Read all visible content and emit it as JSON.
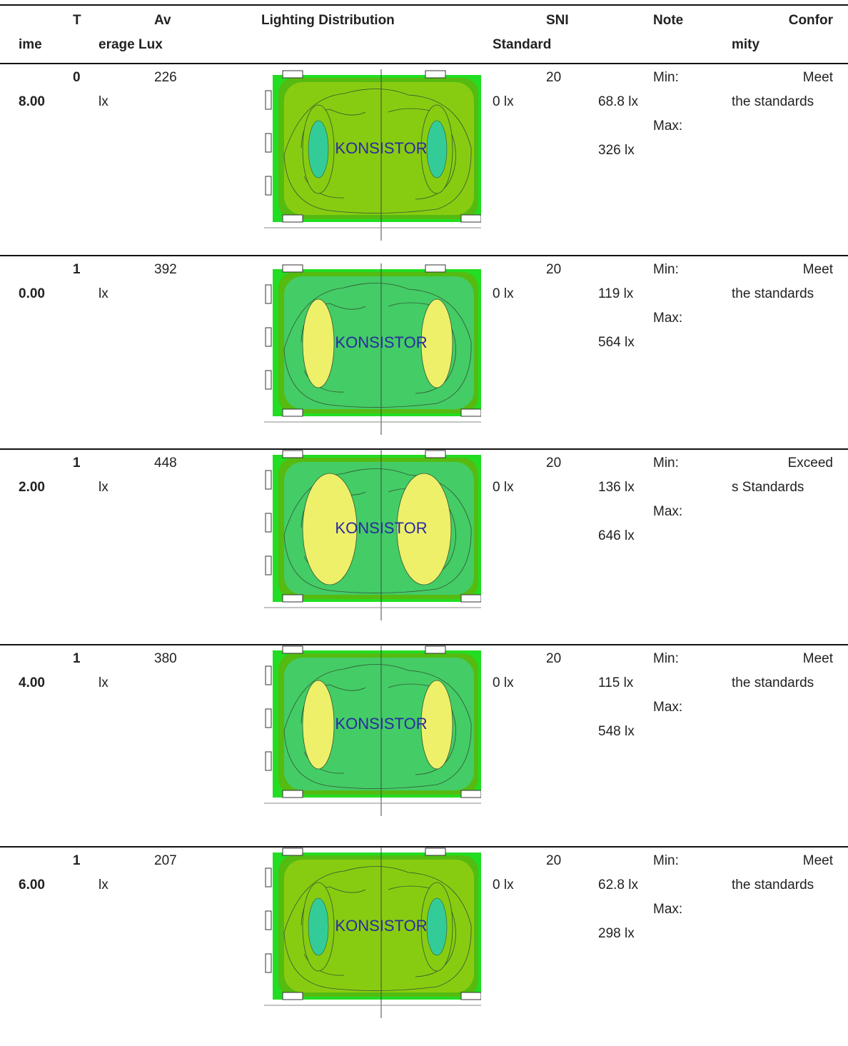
{
  "header": {
    "time_l1": "T",
    "time_l2": "ime",
    "avg_l1": "Av",
    "avg_l2": "erage Lux",
    "dist": "Lighting Distribution",
    "sni_l1": "SNI",
    "sni_l2": "Standard",
    "note": "Note",
    "conf_l1": "Confor",
    "conf_l2": "mity"
  },
  "diagram_label": "KONSISTOR",
  "rows": [
    {
      "t1": "0",
      "t2": "8.00",
      "avg": "226",
      "unit": "lx",
      "sni1": "20",
      "sni2": "0 lx",
      "min_label": "Min:",
      "min": "68.8 lx",
      "max_label": "Max:",
      "max": "326 lx",
      "c1": "Meet",
      "c2": "the standards",
      "scheme": "low"
    },
    {
      "t1": "1",
      "t2": "0.00",
      "avg": "392",
      "unit": "lx",
      "sni1": "20",
      "sni2": "0 lx",
      "min_label": "Min:",
      "min": "119 lx",
      "max_label": "Max:",
      "max": "564 lx",
      "c1": "Meet",
      "c2": "the standards",
      "scheme": "mid"
    },
    {
      "t1": "1",
      "t2": "2.00",
      "avg": "448",
      "unit": "lx",
      "sni1": "20",
      "sni2": "0 lx",
      "min_label": "Min:",
      "min": "136 lx",
      "max_label": "Max:",
      "max": "646 lx",
      "c1": "Exceed",
      "c2": "s Standards",
      "scheme": "high"
    },
    {
      "t1": "1",
      "t2": "4.00",
      "avg": "380",
      "unit": "lx",
      "sni1": "20",
      "sni2": "0 lx",
      "min_label": "Min:",
      "min": "115 lx",
      "max_label": "Max:",
      "max": "548 lx",
      "c1": "Meet",
      "c2": "the standards",
      "scheme": "mid"
    },
    {
      "t1": "1",
      "t2": "6.00",
      "avg": "207",
      "unit": "lx",
      "sni1": "20",
      "sni2": "0 lx",
      "min_label": "Min:",
      "min": "62.8 lx",
      "max_label": "Max:",
      "max": "298 lx",
      "c1": "Meet",
      "c2": "the standards",
      "scheme": "low"
    }
  ],
  "colors": {
    "border_green": "#22dd22",
    "dark_green": "#55bb11",
    "mid_green": "#44cc66",
    "olive": "#88cc11",
    "inner_cyan": "#33cc99",
    "yellow": "#eef06a",
    "label_blue": "#2a2aa0"
  }
}
